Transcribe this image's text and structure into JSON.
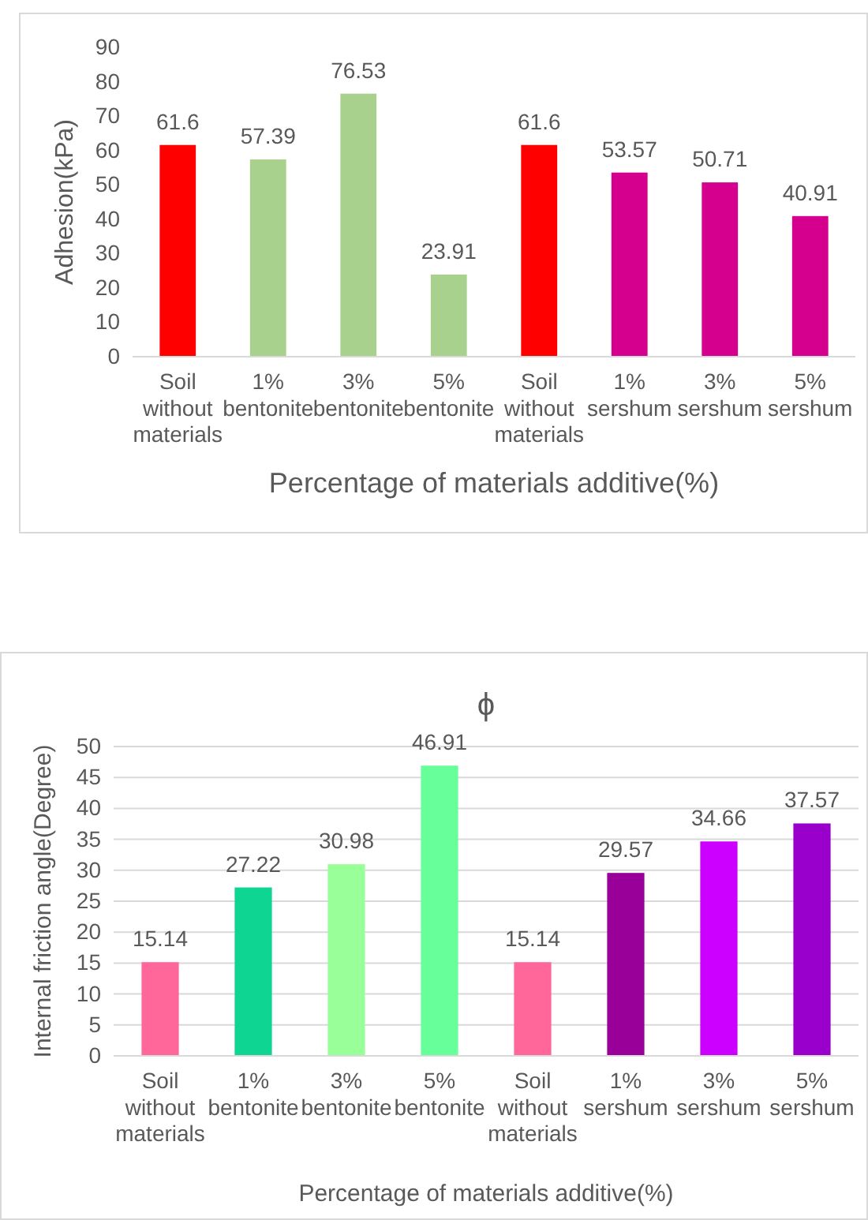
{
  "chart_data": [
    {
      "type": "bar",
      "ylabel": "Adhesion(kPa)",
      "xlabel": "Percentage of materials additive(%)",
      "categories": [
        "Soil without materials",
        "1% bentonite",
        "3% bentonite",
        "5% bentonite",
        "Soil without materials",
        "1% sershum",
        "3% sershum",
        "5% sershum"
      ],
      "values": [
        61.6,
        57.39,
        76.53,
        23.91,
        61.6,
        53.57,
        50.71,
        40.91
      ],
      "colors": [
        "#ff0000",
        "#a9d18e",
        "#a9d18e",
        "#a9d18e",
        "#ff0000",
        "#d6008f",
        "#d6008f",
        "#d6008f"
      ],
      "ylim": [
        0,
        90
      ],
      "yticks": [
        0,
        10,
        20,
        30,
        40,
        50,
        60,
        70,
        80,
        90
      ],
      "grid": false,
      "data_labels": true
    },
    {
      "type": "bar",
      "title": "ϕ",
      "ylabel": "Internal friction angle(Degree)",
      "xlabel": "Percentage of materials additive(%)",
      "categories": [
        "Soil without materials",
        "1% bentonite",
        "3% bentonite",
        "5% bentonite",
        "Soil without materials",
        "1% sershum",
        "3% sershum",
        "5% sershum"
      ],
      "values": [
        15.14,
        27.22,
        30.98,
        46.91,
        15.14,
        29.57,
        34.66,
        37.57
      ],
      "colors": [
        "#ff6699",
        "#0fd593",
        "#99ff99",
        "#66ff99",
        "#ff6699",
        "#990099",
        "#cc00ff",
        "#9900cc"
      ],
      "ylim": [
        0,
        50
      ],
      "yticks": [
        0,
        5,
        10,
        15,
        20,
        25,
        30,
        35,
        40,
        45,
        50
      ],
      "grid": "y",
      "data_labels": true
    }
  ]
}
